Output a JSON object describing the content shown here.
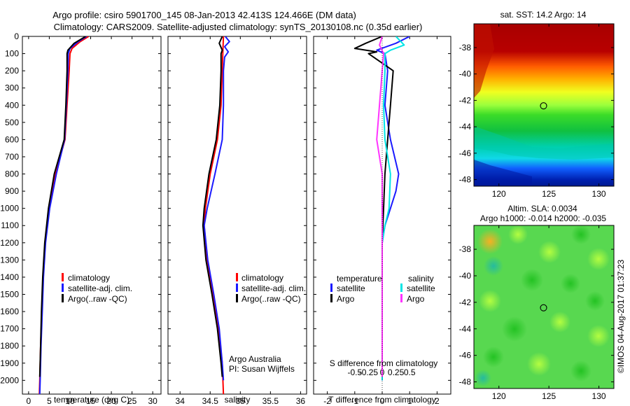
{
  "header": {
    "title_line1": "Argo profile: csiro 5901700_145 08-Jan-2013 42.413S 124.466E (DM data)",
    "title_line2": "Climatology: CARS2009. Satellite-adjusted climatology: synTS_20130108.nc (0.35d earlier)"
  },
  "credit": {
    "text": "©IMOS 04-Aug-2017 01:37:23"
  },
  "colors": {
    "climatology": "#ff0000",
    "satellite_adj": "#1a1aff",
    "argo": "#000000",
    "temp_sat": "#1a1aff",
    "temp_argo": "#000000",
    "sal_sat": "#00e5e5",
    "sal_argo": "#ff33ff"
  },
  "chart_data": [
    {
      "type": "line",
      "id": "temperature",
      "xlabel": "temperature (deg C)",
      "xlim": [
        -1.5,
        32
      ],
      "x_ticks": [
        0,
        5,
        10,
        15,
        20,
        25,
        30
      ],
      "ylim": [
        2080,
        0
      ],
      "y_ticks": [
        0,
        100,
        200,
        300,
        400,
        500,
        600,
        700,
        800,
        900,
        1000,
        1100,
        1200,
        1300,
        1400,
        1500,
        1600,
        1700,
        1800,
        1900,
        2000
      ],
      "legend": [
        "climatology",
        "satellite-adj. clim.",
        "Argo(..raw -QC)"
      ],
      "series": [
        {
          "name": "climatology",
          "color_key": "climatology",
          "points": [
            [
              14.5,
              0
            ],
            [
              12.5,
              30
            ],
            [
              10.5,
              70
            ],
            [
              10,
              100
            ],
            [
              9.8,
              200
            ],
            [
              9.3,
              400
            ],
            [
              8.8,
              600
            ],
            [
              6.5,
              800
            ],
            [
              5,
              1000
            ],
            [
              4,
              1200
            ],
            [
              3.5,
              1400
            ],
            [
              3.2,
              1600
            ],
            [
              2.9,
              1800
            ],
            [
              2.7,
              2000
            ],
            [
              2.6,
              2080
            ]
          ]
        },
        {
          "name": "satellite-adj. clim.",
          "color_key": "satellite_adj",
          "points": [
            [
              14,
              0
            ],
            [
              12,
              30
            ],
            [
              10,
              70
            ],
            [
              9.6,
              100
            ],
            [
              9.5,
              200
            ],
            [
              9.1,
              400
            ],
            [
              8.7,
              600
            ],
            [
              6.7,
              800
            ],
            [
              5.1,
              1000
            ],
            [
              4.1,
              1200
            ],
            [
              3.6,
              1400
            ],
            [
              3.3,
              1600
            ],
            [
              3,
              1800
            ],
            [
              2.8,
              2000
            ],
            [
              2.7,
              2080
            ]
          ]
        },
        {
          "name": "Argo(..raw -QC)",
          "color_key": "argo",
          "points": [
            [
              13.8,
              0
            ],
            [
              11,
              40
            ],
            [
              9.5,
              80
            ],
            [
              9.3,
              100
            ],
            [
              9.3,
              200
            ],
            [
              9,
              400
            ],
            [
              8.6,
              600
            ],
            [
              6.2,
              800
            ],
            [
              4.8,
              1000
            ],
            [
              3.9,
              1200
            ],
            [
              3.4,
              1400
            ],
            [
              3.1,
              1600
            ],
            [
              2.9,
              1800
            ],
            [
              2.7,
              1980
            ]
          ]
        }
      ]
    },
    {
      "type": "line",
      "id": "salinity",
      "xlabel": "salinity",
      "xlim": [
        33.8,
        36.1
      ],
      "x_ticks": [
        34,
        34.5,
        35,
        35.5,
        36
      ],
      "x_tick_labels": [
        "34",
        "34.5",
        "35",
        "35.5",
        "36"
      ],
      "ylim": [
        2080,
        0
      ],
      "legend": [
        "climatology",
        "satellite-adj. clim.",
        "Argo(..raw -QC)"
      ],
      "annotation": [
        "Argo Australia",
        "PI: Susan Wijffels"
      ],
      "series": [
        {
          "name": "climatology",
          "color_key": "climatology",
          "points": [
            [
              34.72,
              0
            ],
            [
              34.71,
              100
            ],
            [
              34.7,
              200
            ],
            [
              34.68,
              400
            ],
            [
              34.62,
              600
            ],
            [
              34.5,
              800
            ],
            [
              34.42,
              1000
            ],
            [
              34.4,
              1100
            ],
            [
              34.45,
              1300
            ],
            [
              34.55,
              1500
            ],
            [
              34.64,
              1700
            ],
            [
              34.7,
              1900
            ],
            [
              34.72,
              2080
            ]
          ]
        },
        {
          "name": "satellite-adj. clim.",
          "color_key": "satellite_adj",
          "points": [
            [
              34.75,
              0
            ],
            [
              34.82,
              30
            ],
            [
              34.74,
              60
            ],
            [
              34.8,
              90
            ],
            [
              34.74,
              120
            ],
            [
              34.72,
              200
            ],
            [
              34.72,
              400
            ],
            [
              34.7,
              600
            ],
            [
              34.58,
              800
            ],
            [
              34.45,
              1000
            ],
            [
              34.4,
              1100
            ],
            [
              34.46,
              1300
            ],
            [
              34.56,
              1500
            ],
            [
              34.65,
              1700
            ],
            [
              34.7,
              1900
            ],
            [
              34.72,
              2000
            ]
          ]
        },
        {
          "name": "Argo(..raw -QC)",
          "color_key": "argo",
          "points": [
            [
              34.7,
              0
            ],
            [
              34.65,
              40
            ],
            [
              34.7,
              80
            ],
            [
              34.68,
              100
            ],
            [
              34.68,
              200
            ],
            [
              34.66,
              400
            ],
            [
              34.6,
              600
            ],
            [
              34.48,
              800
            ],
            [
              34.4,
              1000
            ],
            [
              34.38,
              1100
            ],
            [
              34.43,
              1300
            ],
            [
              34.53,
              1500
            ],
            [
              34.62,
              1700
            ],
            [
              34.68,
              1900
            ],
            [
              34.7,
              1980
            ]
          ]
        }
      ]
    },
    {
      "type": "line",
      "id": "difference",
      "xlabel": "T difference from climatology",
      "xlabel2": "S difference from climatology",
      "xlim": [
        -2.5,
        2.5
      ],
      "x_ticks": [
        -2,
        -1,
        0,
        1,
        2
      ],
      "x_tick_labels": [
        "-2",
        "-1",
        "0",
        "1",
        "2"
      ],
      "x2_ticks": [
        -1,
        -0.5,
        0,
        0.5,
        1
      ],
      "x2_tick_labels": [
        "-0.5",
        "-0.25",
        "0",
        "0.25",
        "0.5"
      ],
      "ylim": [
        2080,
        0
      ],
      "legend_left_title": "temperature",
      "legend_right_title": "salinity",
      "legend_left": [
        "satellite",
        "Argo"
      ],
      "legend_right": [
        "satellite",
        "Argo"
      ],
      "series": [
        {
          "name": "satellite",
          "group": "temperature",
          "color_key": "temp_sat",
          "points": [
            [
              1,
              0
            ],
            [
              0.5,
              40
            ],
            [
              -0.2,
              80
            ],
            [
              0.1,
              100
            ],
            [
              0.2,
              200
            ],
            [
              0.1,
              400
            ],
            [
              0.3,
              600
            ],
            [
              0.6,
              800
            ],
            [
              0.5,
              900
            ],
            [
              0.3,
              1000
            ],
            [
              0.1,
              1100
            ],
            [
              0,
              1200
            ],
            [
              0,
              1500
            ],
            [
              0,
              2000
            ]
          ]
        },
        {
          "name": "Argo",
          "group": "temperature",
          "color_key": "temp_argo",
          "points": [
            [
              0,
              0
            ],
            [
              -0.6,
              40
            ],
            [
              -1,
              70
            ],
            [
              -0.2,
              90
            ],
            [
              -0.5,
              100
            ],
            [
              0.4,
              200
            ],
            [
              0.3,
              400
            ],
            [
              0.2,
              600
            ],
            [
              0.1,
              800
            ],
            [
              0.05,
              1000
            ],
            [
              0,
              1200
            ],
            [
              0,
              1500
            ],
            [
              0,
              1980
            ]
          ]
        },
        {
          "name": "satellite",
          "group": "salinity",
          "color_key": "sal_sat",
          "points": [
            [
              0.5,
              0
            ],
            [
              0.8,
              50
            ],
            [
              0.3,
              80
            ],
            [
              0.1,
              100
            ],
            [
              0.1,
              200
            ],
            [
              0.05,
              400
            ],
            [
              0.1,
              600
            ],
            [
              0.3,
              800
            ],
            [
              0.25,
              1000
            ],
            [
              0.1,
              1100
            ],
            [
              0,
              1200
            ],
            [
              0,
              2000
            ]
          ]
        },
        {
          "name": "Argo",
          "group": "salinity",
          "color_key": "sal_argo",
          "points": [
            [
              0,
              0
            ],
            [
              -0.1,
              50
            ],
            [
              0.05,
              100
            ],
            [
              0,
              200
            ],
            [
              -0.1,
              400
            ],
            [
              -0.2,
              600
            ],
            [
              0,
              800
            ],
            [
              0,
              1000
            ],
            [
              0,
              1200
            ],
            [
              0,
              1980
            ]
          ]
        }
      ]
    },
    {
      "type": "heatmap",
      "id": "sst_map",
      "title": "sat. SST: 14.2 Argo: 14",
      "x_ticks": [
        120,
        125,
        130
      ],
      "y_ticks": [
        -38,
        -40,
        -42,
        -44,
        -46,
        -48
      ],
      "xlim": [
        117.5,
        131.5
      ],
      "ylim": [
        -48.5,
        -36.2
      ],
      "marker": [
        124.466,
        -42.413
      ]
    },
    {
      "type": "heatmap",
      "id": "sla_map",
      "title_line1": "Altim. SLA: 0.0034",
      "title_line2": "Argo h1000: -0.014 h2000: -0.035",
      "x_ticks": [
        120,
        125,
        130
      ],
      "y_ticks": [
        -38,
        -40,
        -42,
        -44,
        -46,
        -48
      ],
      "xlim": [
        117.5,
        131.5
      ],
      "ylim": [
        -48.5,
        -36.2
      ],
      "marker": [
        124.466,
        -42.413
      ]
    }
  ]
}
